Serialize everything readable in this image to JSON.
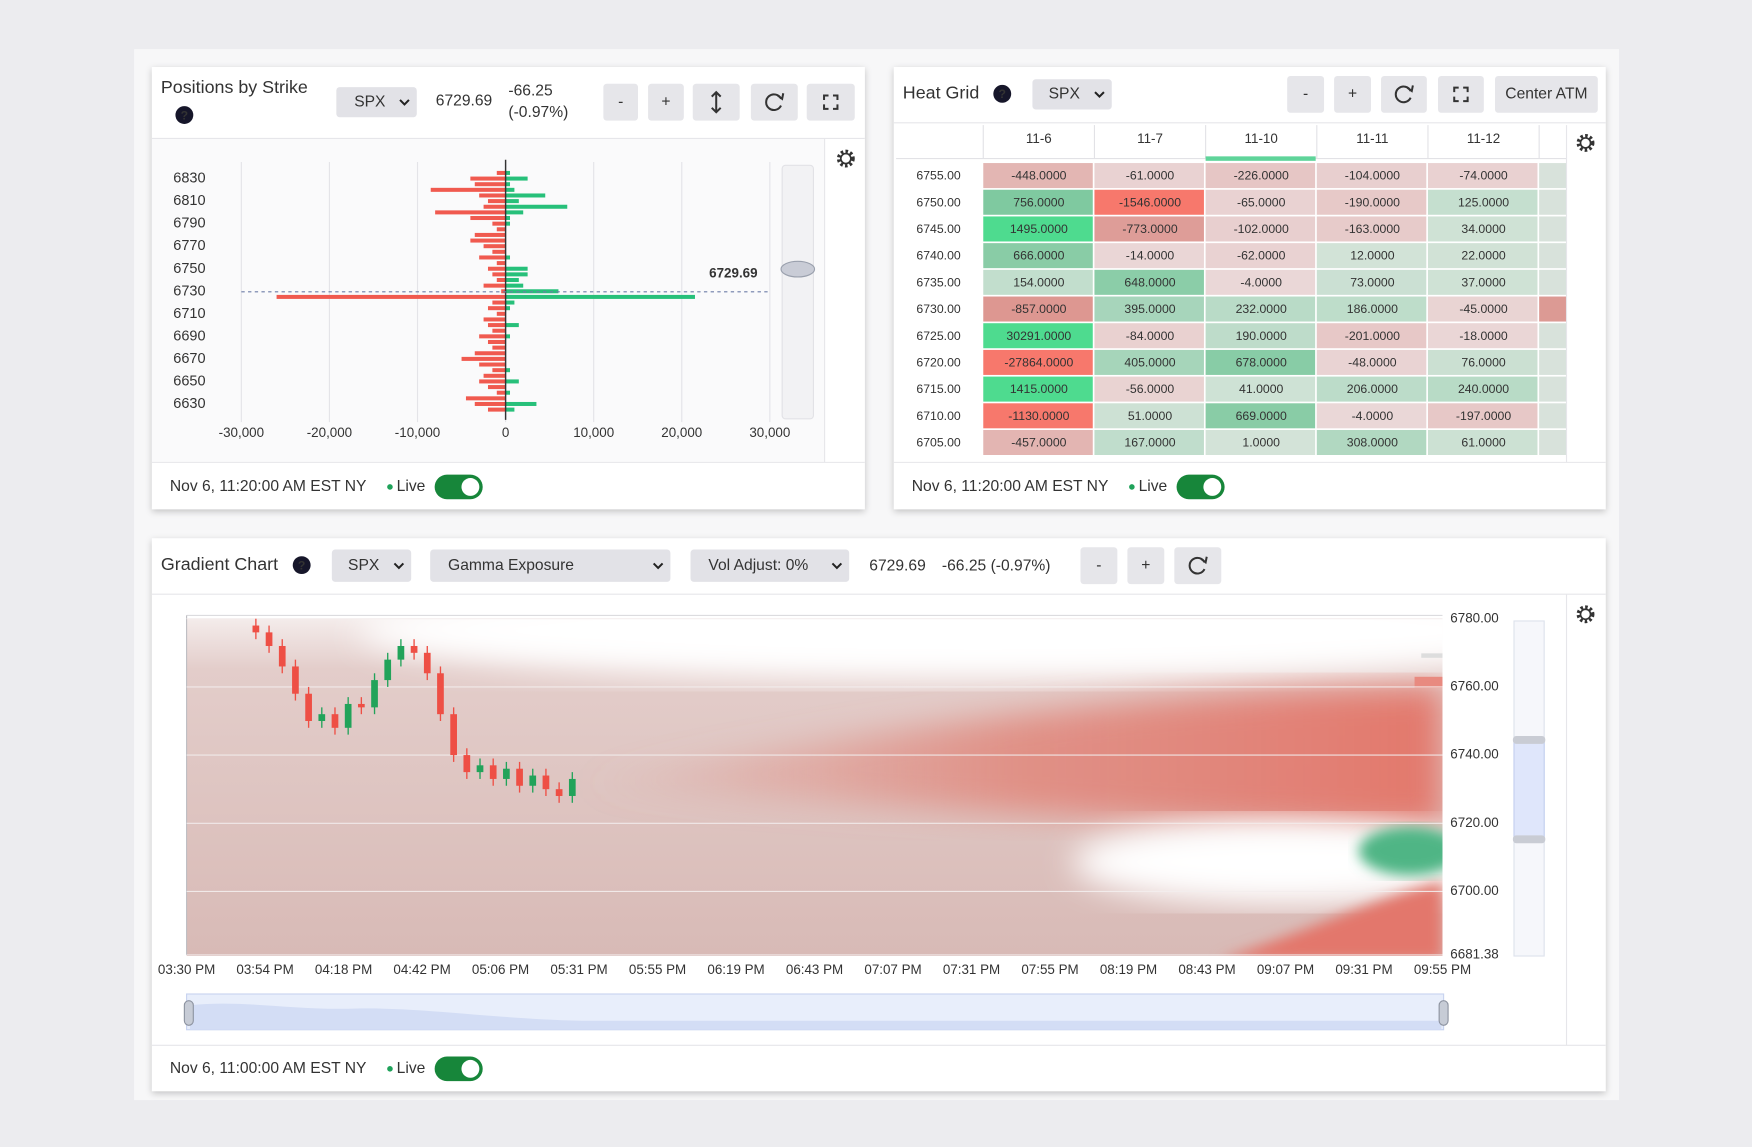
{
  "positions_by_strike": {
    "title": "Positions by Strike",
    "help": "?",
    "symbol": "SPX",
    "price": "6729.69",
    "change": "-66.25",
    "change_pct": "(-0.97%)",
    "buttons": [
      "-",
      "+"
    ],
    "timestamp": "Nov 6, 11:20:00 AM EST NY",
    "live": "Live",
    "chart_data": {
      "type": "bar",
      "orientation": "horizontal",
      "strikes": [
        6835,
        6830,
        6825,
        6820,
        6815,
        6810,
        6805,
        6800,
        6795,
        6790,
        6785,
        6780,
        6775,
        6770,
        6765,
        6760,
        6755,
        6750,
        6745,
        6740,
        6735,
        6730,
        6725,
        6720,
        6715,
        6710,
        6705,
        6700,
        6695,
        6690,
        6685,
        6680,
        6675,
        6670,
        6665,
        6660,
        6655,
        6650,
        6645,
        6640,
        6635,
        6630,
        6625
      ],
      "series": [
        {
          "color": "#f05a4f",
          "values": [
            -1000,
            -4000,
            -3500,
            -8500,
            -3000,
            -2000,
            -2500,
            -8000,
            -4000,
            -1500,
            -1000,
            -3500,
            -4000,
            -2500,
            -1500,
            -3000,
            -1000,
            -2000,
            -1500,
            -1000,
            -2500,
            -500,
            -26000,
            -1500,
            -2000,
            -1000,
            -2500,
            -2000,
            -1500,
            -3000,
            -2000,
            -1500,
            -3500,
            -5000,
            -3000,
            -1500,
            -2500,
            -3000,
            -2000,
            -1000,
            -4500,
            -3500,
            -2000
          ]
        },
        {
          "color": "#27c07a",
          "values": [
            500,
            2500,
            500,
            1000,
            4500,
            1500,
            7000,
            2000,
            500,
            500,
            0,
            0,
            0,
            0,
            0,
            500,
            0,
            2500,
            2500,
            1500,
            2000,
            6000,
            21500,
            1000,
            500,
            0,
            0,
            1500,
            0,
            500,
            0,
            0,
            0,
            0,
            0,
            500,
            0,
            1500,
            0,
            500,
            0,
            3500,
            1000
          ]
        }
      ],
      "xlim": [
        -30000,
        30000
      ],
      "xticks": [
        {
          "value": -30000,
          "label": "-30,000"
        },
        {
          "value": -20000,
          "label": "-20,000"
        },
        {
          "value": -10000,
          "label": "-10,000"
        },
        0,
        {
          "value": 10000,
          "label": "10,000"
        },
        {
          "value": 20000,
          "label": "20,000"
        },
        {
          "value": 30000,
          "label": "30,000"
        }
      ],
      "ylim": [
        6620,
        6840
      ],
      "yticks": [
        6630,
        6650,
        6670,
        6690,
        6710,
        6730,
        6750,
        6770,
        6790,
        6810,
        6830
      ],
      "spot": 6729.69,
      "grid": true
    }
  },
  "heat_grid": {
    "title": "Heat Grid",
    "help": "?",
    "symbol": "SPX",
    "buttons": [
      "-",
      "+"
    ],
    "center_atm": "Center ATM",
    "columns": [
      "11-6",
      "11-7",
      "11-10",
      "11-11",
      "11-12"
    ],
    "rows": [
      {
        "strike": "6755.00",
        "cells": [
          "-448.0000",
          "-61.0000",
          "-226.0000",
          "-104.0000",
          "-74.0000"
        ]
      },
      {
        "strike": "6750.00",
        "cells": [
          "756.0000",
          "-1546.0000",
          "-65.0000",
          "-190.0000",
          "125.0000"
        ]
      },
      {
        "strike": "6745.00",
        "cells": [
          "1495.0000",
          "-773.0000",
          "-102.0000",
          "-163.0000",
          "34.0000"
        ]
      },
      {
        "strike": "6740.00",
        "cells": [
          "666.0000",
          "-14.0000",
          "-62.0000",
          "12.0000",
          "22.0000"
        ]
      },
      {
        "strike": "6735.00",
        "cells": [
          "154.0000",
          "648.0000",
          "-4.0000",
          "73.0000",
          "37.0000"
        ]
      },
      {
        "strike": "6730.00",
        "cells": [
          "-857.0000",
          "395.0000",
          "232.0000",
          "186.0000",
          "-45.0000"
        ]
      },
      {
        "strike": "6725.00",
        "cells": [
          "30291.0000",
          "-84.0000",
          "190.0000",
          "-201.0000",
          "-18.0000"
        ]
      },
      {
        "strike": "6720.00",
        "cells": [
          "-27864.0000",
          "405.0000",
          "678.0000",
          "-48.0000",
          "76.0000"
        ]
      },
      {
        "strike": "6715.00",
        "cells": [
          "1415.0000",
          "-56.0000",
          "41.0000",
          "206.0000",
          "240.0000"
        ]
      },
      {
        "strike": "6710.00",
        "cells": [
          "-1130.0000",
          "51.0000",
          "669.0000",
          "-4.0000",
          "-197.0000"
        ]
      },
      {
        "strike": "6705.00",
        "cells": [
          "-457.0000",
          "167.0000",
          "1.0000",
          "308.0000",
          "61.0000"
        ]
      }
    ],
    "timestamp": "Nov 6, 11:20:00 AM EST NY",
    "live": "Live"
  },
  "gradient_chart": {
    "title": "Gradient Chart",
    "help": "?",
    "symbol": "SPX",
    "metric": "Gamma Exposure",
    "vol_adjust": "Vol Adjust: 0%",
    "price": "6729.69",
    "change": "-66.25 (-0.97%)",
    "buttons": [
      "-",
      "+"
    ],
    "timestamp": "Nov 6, 11:00:00 AM EST NY",
    "live": "Live",
    "chart_data": {
      "type": "candlestick",
      "time_ticks": [
        "03:30 PM",
        "03:54 PM",
        "04:18 PM",
        "04:42 PM",
        "05:06 PM",
        "05:31 PM",
        "05:55 PM",
        "06:19 PM",
        "06:43 PM",
        "07:07 PM",
        "07:31 PM",
        "07:55 PM",
        "08:19 PM",
        "08:43 PM",
        "09:07 PM",
        "09:31 PM",
        "09:55 PM"
      ],
      "open": [
        6778,
        6776,
        6772,
        6766,
        6758,
        6750,
        6752,
        6748,
        6755,
        6754,
        6762,
        6768,
        6772,
        6770,
        6764,
        6752,
        6740,
        6735,
        6737,
        6733,
        6736,
        6731,
        6734,
        6730,
        6728
      ],
      "high": [
        6780,
        6778,
        6774,
        6768,
        6760,
        6754,
        6754,
        6757,
        6757,
        6764,
        6770,
        6774,
        6774,
        6772,
        6766,
        6754,
        6742,
        6739,
        6739,
        6738,
        6738,
        6736,
        6736,
        6732,
        6735
      ],
      "low": [
        6774,
        6770,
        6764,
        6756,
        6748,
        6748,
        6746,
        6746,
        6752,
        6752,
        6760,
        6766,
        6768,
        6762,
        6750,
        6738,
        6733,
        6733,
        6731,
        6731,
        6729,
        6729,
        6728,
        6726,
        6726
      ],
      "close": [
        6776,
        6772,
        6766,
        6758,
        6750,
        6752,
        6748,
        6755,
        6754,
        6762,
        6768,
        6772,
        6770,
        6764,
        6752,
        6740,
        6735,
        6737,
        6733,
        6736,
        6731,
        6734,
        6730,
        6728,
        6733
      ],
      "up_color": "#22a35a",
      "down_color": "#ee4f45",
      "ylim": [
        6681.38,
        6780
      ],
      "yticks": [
        {
          "value": 6780,
          "label": "6780.00"
        },
        {
          "value": 6760,
          "label": "6760.00"
        },
        {
          "value": 6740,
          "label": "6740.00"
        },
        {
          "value": 6720,
          "label": "6720.00"
        },
        {
          "value": 6700,
          "label": "6700.00"
        },
        {
          "value": 6681.38,
          "label": "6681.38"
        }
      ]
    }
  }
}
